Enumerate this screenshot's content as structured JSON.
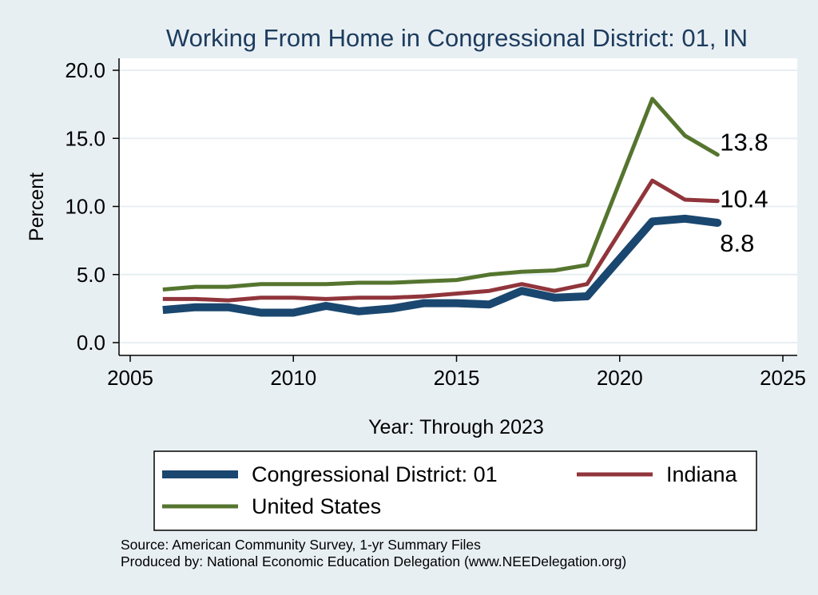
{
  "chart_data": {
    "type": "line",
    "title": "Working From Home in Congressional District: 01, IN",
    "xlabel": "Year: Through 2023",
    "ylabel": "Percent",
    "xlim": [
      2005,
      2025
    ],
    "ylim": [
      0,
      20
    ],
    "x_ticks": [
      "2005",
      "2010",
      "2015",
      "2020",
      "2025"
    ],
    "y_ticks": [
      "0.0",
      "5.0",
      "10.0",
      "15.0",
      "20.0"
    ],
    "grid": true,
    "legend_position": "bottom",
    "x": [
      2006,
      2007,
      2008,
      2009,
      2010,
      2011,
      2012,
      2013,
      2014,
      2015,
      2016,
      2017,
      2018,
      2019,
      2021,
      2022,
      2023
    ],
    "series": [
      {
        "name": "Congressional District: 01",
        "color": "#1a476f",
        "values": [
          2.4,
          2.6,
          2.6,
          2.2,
          2.2,
          2.7,
          2.3,
          2.5,
          2.9,
          2.9,
          2.8,
          3.8,
          3.3,
          3.4,
          8.9,
          9.1,
          8.8
        ],
        "end_label": "8.8"
      },
      {
        "name": "Indiana",
        "color": "#90353b",
        "values": [
          3.2,
          3.2,
          3.1,
          3.3,
          3.3,
          3.2,
          3.3,
          3.3,
          3.4,
          3.6,
          3.8,
          4.3,
          3.8,
          4.3,
          11.9,
          10.5,
          10.4
        ],
        "end_label": "10.4"
      },
      {
        "name": "United States",
        "color": "#55752f",
        "values": [
          3.9,
          4.1,
          4.1,
          4.3,
          4.3,
          4.3,
          4.4,
          4.4,
          4.5,
          4.6,
          5.0,
          5.2,
          5.3,
          5.7,
          17.9,
          15.2,
          13.8
        ],
        "end_label": "13.8"
      }
    ],
    "source_lines": [
      "Source: American Community Survey, 1-yr Summary Files",
      "Produced by: National Economic Education Delegation (www.NEEDelegation.org)"
    ]
  }
}
